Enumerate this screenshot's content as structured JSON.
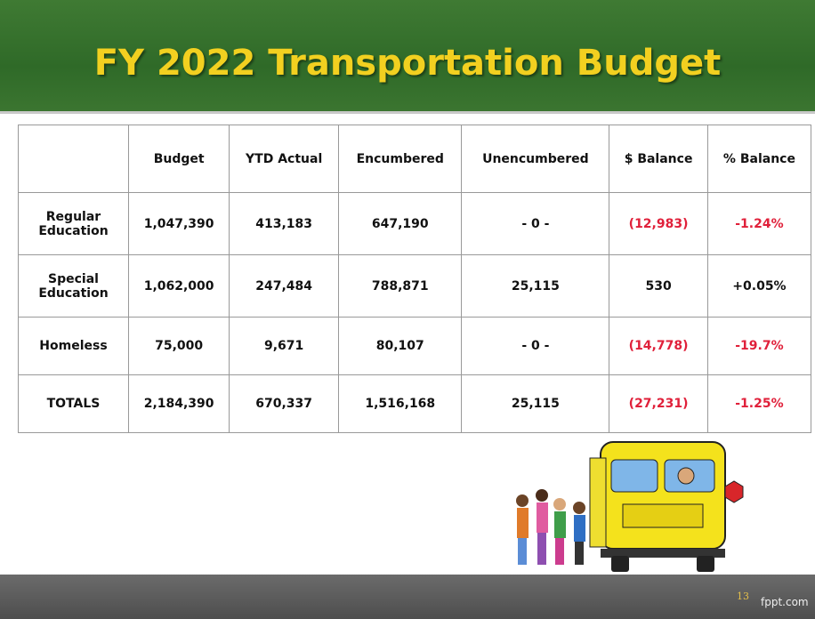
{
  "header": {
    "title": "FY 2022 Transportation Budget"
  },
  "table": {
    "headers": [
      "Budget",
      "YTD Actual",
      "Encumbered",
      "Unencumbered",
      "$ Balance",
      "% Balance"
    ],
    "rows": [
      {
        "label": "Regular Education",
        "cells": [
          "1,047,390",
          "413,183",
          "647,190",
          "- 0 -",
          "(12,983)",
          "-1.24%"
        ]
      },
      {
        "label": "Special Education",
        "cells": [
          "1,062,000",
          "247,484",
          "788,871",
          "25,115",
          "530",
          "+0.05%"
        ]
      },
      {
        "label": "Homeless",
        "cells": [
          "75,000",
          "9,671",
          "80,107",
          "- 0 -",
          "(14,778)",
          "-19.7%"
        ]
      },
      {
        "label": "TOTALS",
        "cells": [
          "2,184,390",
          "670,337",
          "1,516,168",
          "25,115",
          "(27,231)",
          "-1.25%"
        ]
      }
    ]
  },
  "footer": {
    "page": "13",
    "site": "fppt.com"
  }
}
